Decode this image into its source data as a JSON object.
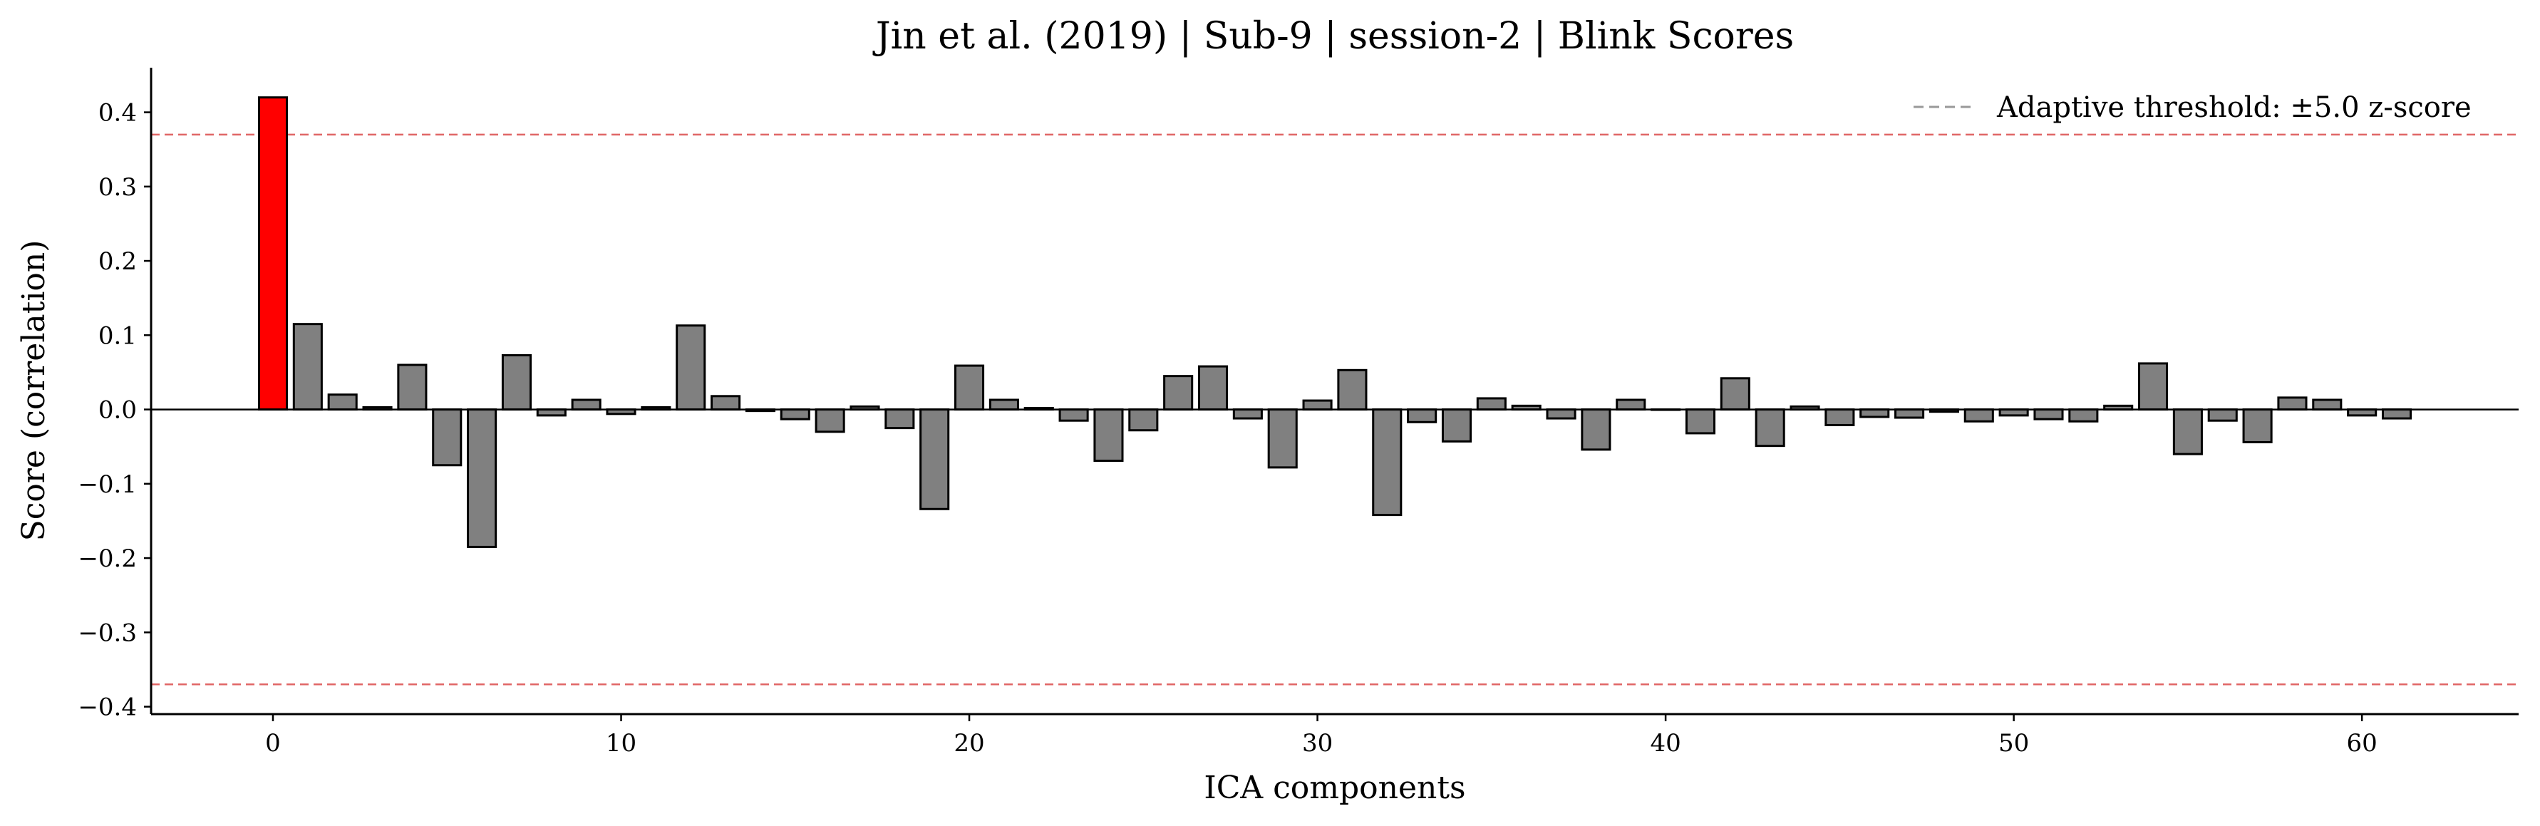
{
  "chart_data": {
    "type": "bar",
    "title": "Jin et al. (2019) | Sub-9 | session-2 | Blink Scores",
    "xlabel": "ICA components",
    "ylabel": "Score (correlation)",
    "xlim": [
      -3.5,
      64.5
    ],
    "ylim": [
      -0.41,
      0.46
    ],
    "xticks": [
      0,
      10,
      20,
      30,
      40,
      50,
      60
    ],
    "xtick_labels": [
      "0",
      "10",
      "20",
      "30",
      "40",
      "50",
      "60"
    ],
    "yticks": [
      0.4,
      0.3,
      0.2,
      0.1,
      0.0,
      -0.1,
      -0.2,
      -0.3,
      -0.4
    ],
    "ytick_labels": [
      "0.4",
      "0.3",
      "0.2",
      "0.1",
      "0.0",
      "−0.1",
      "−0.2",
      "−0.3",
      "−0.4"
    ],
    "x": [
      0,
      1,
      2,
      3,
      4,
      5,
      6,
      7,
      8,
      9,
      10,
      11,
      12,
      13,
      14,
      15,
      16,
      17,
      18,
      19,
      20,
      21,
      22,
      23,
      24,
      25,
      26,
      27,
      28,
      29,
      30,
      31,
      32,
      33,
      34,
      35,
      36,
      37,
      38,
      39,
      40,
      41,
      42,
      43,
      44,
      45,
      46,
      47,
      48,
      49,
      50,
      51,
      52,
      53,
      54,
      55,
      56,
      57,
      58,
      59,
      60,
      61
    ],
    "values": [
      0.42,
      0.115,
      0.02,
      0.003,
      0.06,
      -0.075,
      -0.185,
      0.073,
      -0.008,
      0.013,
      -0.006,
      0.003,
      0.113,
      0.018,
      -0.002,
      -0.013,
      -0.03,
      0.004,
      -0.025,
      -0.134,
      0.059,
      0.013,
      0.002,
      -0.015,
      -0.069,
      -0.028,
      0.045,
      0.058,
      -0.012,
      -0.078,
      0.012,
      0.053,
      -0.142,
      -0.017,
      -0.043,
      0.015,
      0.005,
      -0.012,
      -0.054,
      0.013,
      0.0,
      -0.032,
      0.042,
      -0.049,
      0.004,
      -0.021,
      -0.01,
      -0.011,
      -0.003,
      -0.016,
      -0.008,
      -0.013,
      -0.016,
      0.005,
      0.062,
      -0.06,
      -0.015,
      -0.044,
      0.016,
      0.013,
      -0.008,
      -0.012
    ],
    "flagged_components": [
      0
    ],
    "bar_color": "#808080",
    "flagged_color": "#ff0000",
    "edge_color": "#000000",
    "threshold": {
      "label": "Adaptive threshold: ±5.0 z-score",
      "upper": 0.37,
      "lower": -0.37,
      "line_color": "#e06666",
      "legend_line_color": "#999999"
    },
    "zero_line": 0.0,
    "legend_position": "top-right",
    "grid": false
  }
}
